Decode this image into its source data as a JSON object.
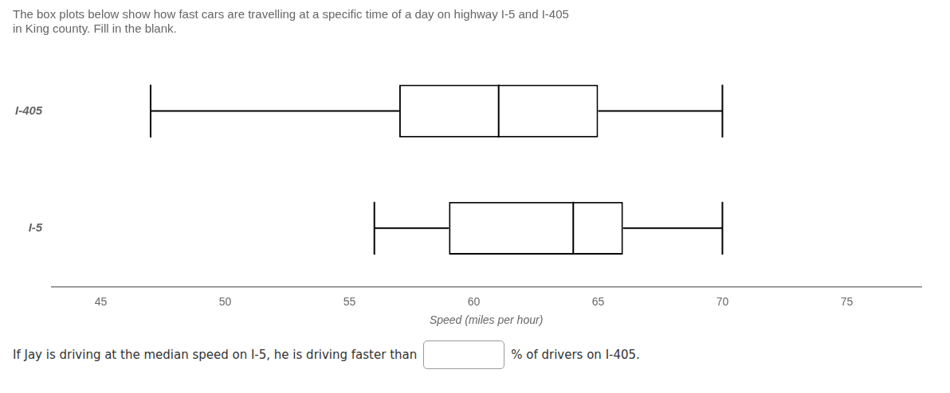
{
  "chart_data": {
    "type": "box",
    "title": [
      "The box plots below show how fast cars are travelling at a specific time of a day on highway I-5 and I-405",
      "in King county. Fill in the blank."
    ],
    "x_label": "Speed (miles per hour)",
    "categories": [
      "I-405",
      "I-5"
    ],
    "values": [
      {
        "min": 47,
        "q1": 57,
        "median": 61,
        "q3": 65,
        "max": 70
      },
      {
        "min": 56,
        "q1": 59,
        "median": 64,
        "q3": 66,
        "max": 70
      }
    ],
    "color": "#000000",
    "orientation": "horizontal",
    "xlim": [
      43,
      78
    ],
    "xticks": [
      45,
      50,
      55,
      60,
      65,
      70,
      75
    ],
    "grid": false,
    "annotations": [
      "If Jay is driving at the median speed on I-5, he is driving faster than",
      "% of drivers on I-405."
    ]
  }
}
